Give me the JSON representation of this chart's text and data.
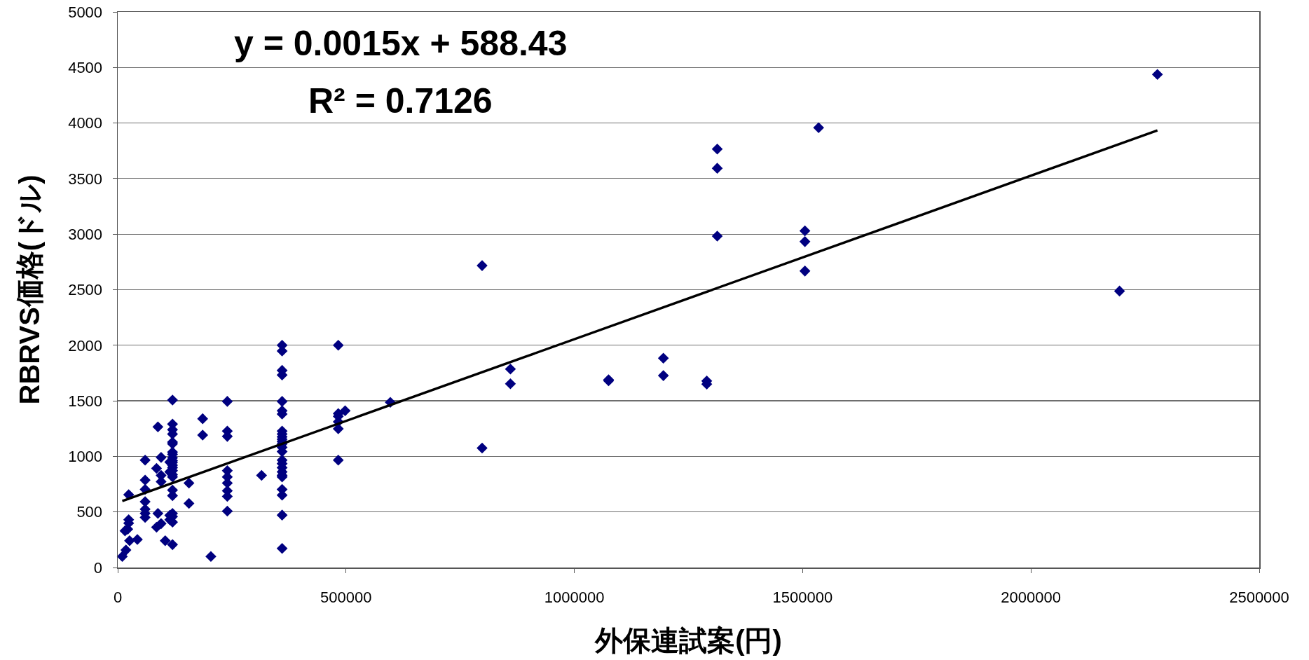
{
  "chart_data": {
    "type": "scatter",
    "xlabel": "外保連試案(円)",
    "ylabel": "RBRVS価格(ドル)",
    "annotations": [
      "y = 0.0015x + 588.43",
      "R² = 0.7126"
    ],
    "xlim": [
      0,
      2500000
    ],
    "xticks": [
      0,
      500000,
      1000000,
      1500000,
      2000000,
      2500000
    ],
    "ylim": [
      0,
      5000
    ],
    "yticks": [
      0,
      500,
      1000,
      1500,
      2000,
      2500,
      3000,
      3500,
      4000,
      4500,
      5000
    ],
    "grid": "y",
    "line_style": "solid",
    "series": [
      {
        "type": "scatter",
        "color": "#000080",
        "marker": "diamond",
        "x": [
          10000,
          18000,
          16000,
          22000,
          24000,
          24000,
          24000,
          26000,
          43000,
          60000,
          60000,
          60000,
          60000,
          60000,
          60000,
          60000,
          85000,
          85000,
          88000,
          88000,
          95000,
          95000,
          95000,
          95000,
          104000,
          120000,
          120000,
          120000,
          120000,
          120000,
          120000,
          120000,
          120000,
          120000,
          120000,
          120000,
          120000,
          120000,
          120000,
          120000,
          120000,
          120000,
          120000,
          120000,
          120000,
          120000,
          120000,
          114000,
          114000,
          114000,
          114000,
          156000,
          156000,
          186000,
          186000,
          204000,
          240000,
          240000,
          240000,
          240000,
          240000,
          240000,
          240000,
          240000,
          240000,
          315000,
          360000,
          360000,
          360000,
          360000,
          360000,
          360000,
          360000,
          360000,
          360000,
          360000,
          360000,
          360000,
          360000,
          360000,
          360000,
          360000,
          360000,
          360000,
          360000,
          360000,
          360000,
          360000,
          360000,
          360000,
          360000,
          483000,
          483000,
          483000,
          483000,
          483000,
          483000,
          498000,
          597000,
          798000,
          798000,
          860000,
          860000,
          1075000,
          1075000,
          1195000,
          1195000,
          1290000,
          1290000,
          1313000,
          1313000,
          1313000,
          1505000,
          1505000,
          1505000,
          1535000,
          2194000,
          2277000
        ],
        "values": [
          99,
          157,
          330,
          345,
          399,
          430,
          655,
          241,
          252,
          966,
          787,
          703,
          592,
          525,
          487,
          451,
          892,
          363,
          1266,
          487,
          991,
          829,
          772,
          395,
          241,
          1507,
          1291,
          1240,
          1201,
          1129,
          1113,
          1039,
          1018,
          987,
          961,
          945,
          920,
          898,
          871,
          836,
          815,
          697,
          647,
          487,
          458,
          409,
          206,
          949,
          860,
          470,
          430,
          760,
          577,
          1339,
          1192,
          99,
          1495,
          1228,
          1180,
          871,
          815,
          760,
          690,
          640,
          508,
          829,
          2000,
          1948,
          1774,
          1732,
          1495,
          1411,
          1381,
          1228,
          1201,
          1176,
          1154,
          1133,
          1113,
          1081,
          1043,
          966,
          934,
          898,
          861,
          829,
          815,
          703,
          651,
          472,
          172,
          2000,
          1385,
          1360,
          1312,
          1249,
          966,
          1411,
          1486,
          2717,
          1075,
          1786,
          1654,
          1690,
          1680,
          1884,
          1727,
          1678,
          1650,
          3766,
          3593,
          2982,
          3030,
          2933,
          2668,
          3958,
          2488,
          4437
        ]
      },
      {
        "type": "line",
        "color": "#000000",
        "marker": "none",
        "x": [
          10000,
          2277000
        ],
        "values": [
          598,
          3934
        ]
      }
    ]
  }
}
